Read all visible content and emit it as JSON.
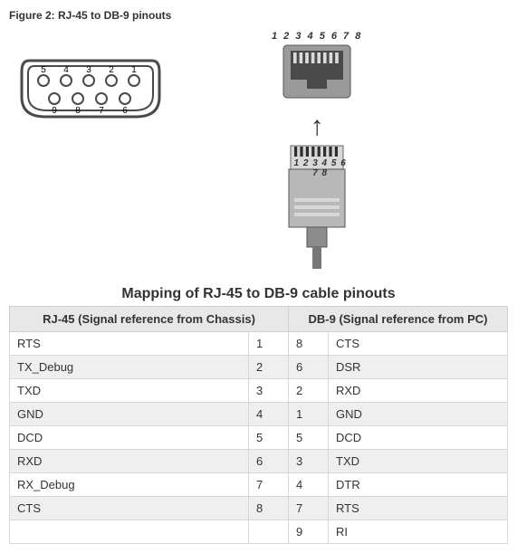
{
  "figure_label": "Figure 2: RJ-45 to DB-9 pinouts",
  "db9": {
    "top_pins": [
      "5",
      "4",
      "3",
      "2",
      "1"
    ],
    "bottom_pins": [
      "9",
      "8",
      "7",
      "6"
    ],
    "stroke": "#4a4a4a",
    "fill": "#ffffff",
    "label_fontsize": 10
  },
  "rj45": {
    "pin_labels": "1 2 3 4 5 6 7 8",
    "jack_body": "#9a9a9a",
    "jack_slot": "#4a4a4a",
    "jack_pin": "#dcdcdc",
    "plug_body": "#b8b8b8",
    "plug_light": "#d8d8d8",
    "plug_dark": "#8c8c8c",
    "plug_pin": "#2d2d2d",
    "cable": "#777777"
  },
  "arrow_color": "#333333",
  "table": {
    "title": "Mapping of RJ-45 to DB-9 cable pinouts",
    "header_left": "RJ-45 (Signal reference from Chassis)",
    "header_right": "DB-9 (Signal reference from PC)",
    "title_fontsize": 16,
    "header_bg": "#e8e8e8",
    "row_alt_bg": "#efefef",
    "border_color": "#d0d0d0",
    "col_widths_pct": [
      48,
      8,
      8,
      36
    ],
    "rows": [
      {
        "rj_sig": "RTS",
        "rj_pin": "1",
        "db_pin": "8",
        "db_sig": "CTS"
      },
      {
        "rj_sig": "TX_Debug",
        "rj_pin": "2",
        "db_pin": "6",
        "db_sig": "DSR"
      },
      {
        "rj_sig": "TXD",
        "rj_pin": "3",
        "db_pin": "2",
        "db_sig": "RXD"
      },
      {
        "rj_sig": "GND",
        "rj_pin": "4",
        "db_pin": "1",
        "db_sig": "GND"
      },
      {
        "rj_sig": "DCD",
        "rj_pin": "5",
        "db_pin": "5",
        "db_sig": "DCD"
      },
      {
        "rj_sig": "RXD",
        "rj_pin": "6",
        "db_pin": "3",
        "db_sig": "TXD"
      },
      {
        "rj_sig": "RX_Debug",
        "rj_pin": "7",
        "db_pin": "4",
        "db_sig": "DTR"
      },
      {
        "rj_sig": "CTS",
        "rj_pin": "8",
        "db_pin": "7",
        "db_sig": "RTS"
      },
      {
        "rj_sig": "",
        "rj_pin": "",
        "db_pin": "9",
        "db_sig": "RI"
      }
    ]
  }
}
